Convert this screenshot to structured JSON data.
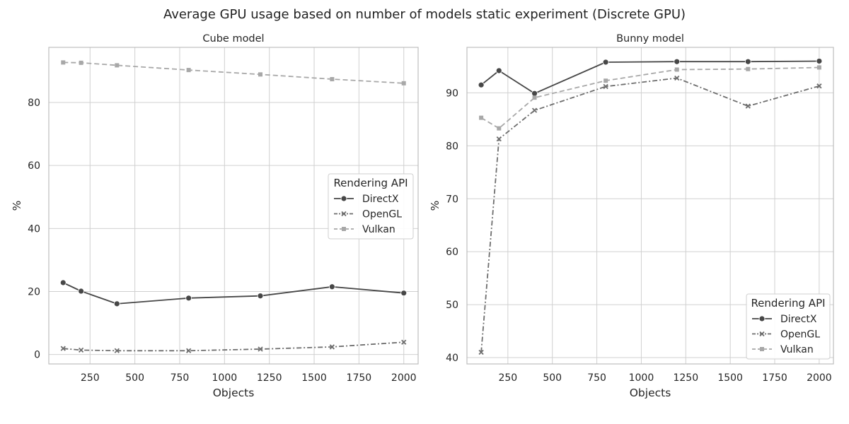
{
  "figure": {
    "title": "Average GPU usage based on number of models static experiment (Discrete GPU)"
  },
  "colors": {
    "DirectX": "#474747",
    "OpenGL": "#6e6e6e",
    "Vulkan": "#a8a8a8",
    "grid": "#d0d0d0",
    "axis": "#bdbdbd",
    "text": "#262626"
  },
  "chart_data": [
    {
      "type": "line",
      "title": "Cube model",
      "xlabel": "Objects",
      "ylabel": "%",
      "xlim": [
        20,
        2080
      ],
      "ylim": [
        -3,
        97.5
      ],
      "xticks": [
        250,
        500,
        750,
        1000,
        1250,
        1500,
        1750,
        2000
      ],
      "yticks": [
        0,
        20,
        40,
        60,
        80
      ],
      "grid": true,
      "legend_title": "Rendering API",
      "legend_position": "center-right",
      "x": [
        100,
        200,
        400,
        800,
        1200,
        1600,
        2000
      ],
      "series": [
        {
          "name": "DirectX",
          "marker": "circle",
          "dash": "solid",
          "values": [
            22.8,
            20.1,
            16.1,
            17.9,
            18.6,
            21.5,
            19.5
          ]
        },
        {
          "name": "OpenGL",
          "marker": "x",
          "dash": "dashdot",
          "values": [
            1.9,
            1.4,
            1.2,
            1.2,
            1.7,
            2.4,
            3.9
          ]
        },
        {
          "name": "Vulkan",
          "marker": "square",
          "dash": "dashed",
          "values": [
            92.7,
            92.6,
            91.8,
            90.3,
            88.9,
            87.4,
            86.1
          ]
        }
      ]
    },
    {
      "type": "line",
      "title": "Bunny model",
      "xlabel": "Objects",
      "ylabel": "%",
      "xlim": [
        20,
        2080
      ],
      "ylim": [
        38.8,
        98.6
      ],
      "xticks": [
        250,
        500,
        750,
        1000,
        1250,
        1500,
        1750,
        2000
      ],
      "yticks": [
        40,
        50,
        60,
        70,
        80,
        90
      ],
      "grid": true,
      "legend_title": "Rendering API",
      "legend_position": "lower-right",
      "x": [
        100,
        200,
        400,
        800,
        1200,
        1600,
        2000
      ],
      "series": [
        {
          "name": "DirectX",
          "marker": "circle",
          "dash": "solid",
          "values": [
            91.5,
            94.2,
            89.9,
            95.8,
            95.9,
            95.9,
            96.0
          ]
        },
        {
          "name": "OpenGL",
          "marker": "x",
          "dash": "dashdot",
          "values": [
            41.0,
            81.3,
            86.7,
            91.2,
            92.8,
            87.5,
            91.3
          ]
        },
        {
          "name": "Vulkan",
          "marker": "square",
          "dash": "dashed",
          "values": [
            85.3,
            83.3,
            89.1,
            92.3,
            94.4,
            94.5,
            94.8
          ]
        }
      ]
    }
  ]
}
